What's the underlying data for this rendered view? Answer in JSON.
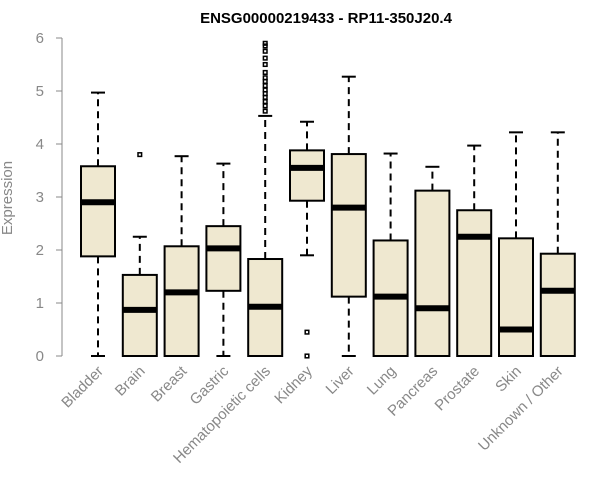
{
  "chart_data": {
    "type": "boxplot",
    "title": "ENSG00000219433 - RP11-350J20.4",
    "xlabel": "",
    "ylabel": "Expression",
    "ylim": [
      0,
      6
    ],
    "yticks": [
      "0",
      "1",
      "2",
      "3",
      "4",
      "5",
      "6"
    ],
    "grid": false,
    "categories": [
      "Bladder",
      "Brain",
      "Breast",
      "Gastric",
      "Hematopoietic cells",
      "Kidney",
      "Liver",
      "Lung",
      "Pancreas",
      "Prostate",
      "Skin",
      "Unknown / Other"
    ],
    "boxes": [
      {
        "min": 0.0,
        "q1": 1.88,
        "median": 2.9,
        "q3": 3.58,
        "max": 4.97,
        "outliers": []
      },
      {
        "min": 0.0,
        "q1": 0.0,
        "median": 0.87,
        "q3": 1.53,
        "max": 2.25,
        "outliers": [
          3.8
        ]
      },
      {
        "min": 0.0,
        "q1": 0.0,
        "median": 1.2,
        "q3": 2.07,
        "max": 3.77,
        "outliers": []
      },
      {
        "min": 0.0,
        "q1": 1.23,
        "median": 2.03,
        "q3": 2.45,
        "max": 3.63,
        "outliers": []
      },
      {
        "min": 0.0,
        "q1": 0.0,
        "median": 0.93,
        "q3": 1.83,
        "max": 4.53,
        "outliers": [
          4.62,
          4.72,
          4.8,
          4.88,
          4.95,
          5.02,
          5.1,
          5.18,
          5.25,
          5.35,
          5.5,
          5.62,
          5.75,
          5.85,
          5.9
        ]
      },
      {
        "min": 1.9,
        "q1": 2.93,
        "median": 3.55,
        "q3": 3.88,
        "max": 4.42,
        "outliers": [
          0.45,
          0.0
        ]
      },
      {
        "min": 0.0,
        "q1": 1.12,
        "median": 2.8,
        "q3": 3.81,
        "max": 5.27,
        "outliers": []
      },
      {
        "min": 0.0,
        "q1": 0.0,
        "median": 1.12,
        "q3": 2.18,
        "max": 3.82,
        "outliers": []
      },
      {
        "min": 0.0,
        "q1": 0.0,
        "median": 0.9,
        "q3": 3.12,
        "max": 3.57,
        "outliers": []
      },
      {
        "min": 0.0,
        "q1": 0.0,
        "median": 2.25,
        "q3": 2.75,
        "max": 3.97,
        "outliers": []
      },
      {
        "min": 0.0,
        "q1": 0.0,
        "median": 0.5,
        "q3": 2.22,
        "max": 4.22,
        "outliers": []
      },
      {
        "min": 0.0,
        "q1": 0.0,
        "median": 1.23,
        "q3": 1.93,
        "max": 4.22,
        "outliers": []
      }
    ],
    "colors": {
      "box_fill": "#efe8d0",
      "box_stroke": "#000000",
      "axis": "#888888"
    }
  }
}
